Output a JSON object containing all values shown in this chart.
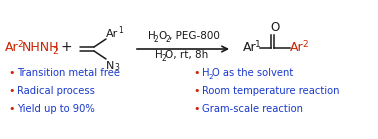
{
  "bg_color": "#ffffff",
  "red_color": "#cc2200",
  "blue_color": "#1a3acc",
  "black_color": "#1a1a1a",
  "bullet_color": "#cc2200",
  "left_bullets": [
    "Transition metal free",
    "Radical process",
    "Yield up to 90%"
  ],
  "right_bullets": [
    "H₂O as the solvent",
    "Room temperature reaction",
    "Gram-scale reaction"
  ],
  "figsize": [
    3.78,
    1.39
  ],
  "dpi": 100
}
